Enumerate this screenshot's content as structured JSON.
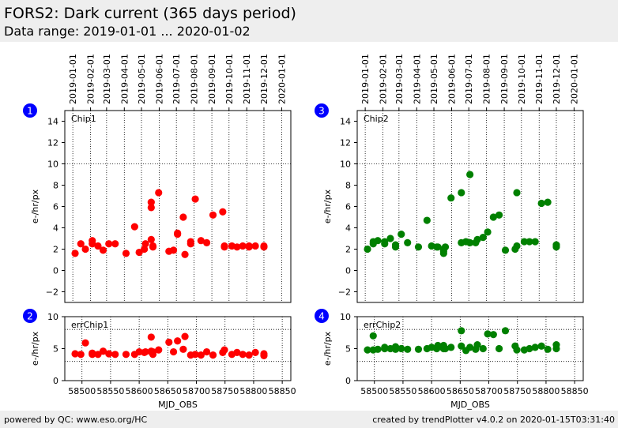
{
  "header": {
    "title": "FORS2: Dark current (365 days period)",
    "subtitle": "Data range: 2019-01-01 ... 2020-01-02"
  },
  "footer": {
    "left": "powered by QC: www.eso.org/HC",
    "right": "created by trendPlotter v4.0.2 on 2020-01-15T03:31:40"
  },
  "colors": {
    "chip1": "#ff0000",
    "chip2": "#008000",
    "badge": "#0000ff"
  },
  "chart_data": [
    {
      "type": "scatter",
      "panel_id": "1",
      "label": "Chip1",
      "xlabel": "",
      "ylabel": "e-/hr/px",
      "xlim": [
        58470,
        58865
      ],
      "ylim": [
        -3,
        15
      ],
      "yticks": [
        -2,
        0,
        2,
        4,
        6,
        8,
        10,
        12,
        14
      ],
      "ref_lines": [
        10
      ],
      "top_ticks": [
        "2019-01-01",
        "2019-02-01",
        "2019-03-01",
        "2019-04-01",
        "2019-05-01",
        "2019-06-01",
        "2019-07-01",
        "2019-08-01",
        "2019-09-01",
        "2019-10-01",
        "2019-11-01",
        "2019-12-01",
        "2020-01-01"
      ],
      "top_tick_mjd": [
        58484,
        58515,
        58543,
        58574,
        58604,
        58635,
        58665,
        58696,
        58727,
        58757,
        58788,
        58818,
        58849
      ],
      "color": "#ff0000",
      "x": [
        58488,
        58498,
        58506,
        58518,
        58518,
        58528,
        58537,
        58547,
        58558,
        58577,
        58592,
        58600,
        58609,
        58611,
        58621,
        58621,
        58621,
        58624,
        58624,
        58634,
        58652,
        58660,
        58667,
        58667,
        58677,
        58680,
        58690,
        58690,
        58698,
        58708,
        58718,
        58729,
        58746,
        58749,
        58749,
        58762,
        58771,
        58781,
        58792,
        58792,
        58803,
        58818,
        58818
      ],
      "y": [
        1.6,
        2.5,
        2.0,
        2.5,
        2.8,
        2.3,
        1.9,
        2.5,
        2.5,
        1.6,
        4.1,
        1.7,
        2.0,
        2.5,
        2.9,
        6.4,
        5.9,
        2.3,
        2.2,
        7.3,
        1.8,
        1.9,
        3.5,
        3.4,
        5.0,
        1.5,
        2.5,
        2.7,
        6.7,
        2.8,
        2.6,
        5.2,
        5.5,
        2.2,
        2.3,
        2.3,
        2.2,
        2.3,
        2.3,
        2.2,
        2.3,
        2.3,
        2.2
      ]
    },
    {
      "type": "scatter",
      "panel_id": "2",
      "label": "errChip1",
      "xlabel": "MJD_OBS",
      "ylabel": "e-/hr/px",
      "xlim": [
        58470,
        58865
      ],
      "ylim": [
        0,
        10
      ],
      "yticks": [
        0,
        5,
        10
      ],
      "ref_lines": [
        8,
        3
      ],
      "xticks": [
        58500,
        58550,
        58600,
        58650,
        58700,
        58750,
        58800,
        58850
      ],
      "color": "#ff0000",
      "x": [
        58488,
        58498,
        58506,
        58518,
        58518,
        58528,
        58537,
        58547,
        58558,
        58577,
        58592,
        58600,
        58609,
        58611,
        58621,
        58621,
        58621,
        58624,
        58624,
        58634,
        58652,
        58660,
        58667,
        58677,
        58680,
        58690,
        58698,
        58708,
        58718,
        58729,
        58746,
        58749,
        58762,
        58771,
        58781,
        58792,
        58803,
        58818,
        58818
      ],
      "y": [
        4.2,
        4.1,
        5.9,
        4.1,
        4.3,
        4.1,
        4.6,
        4.2,
        4.1,
        4.1,
        4.1,
        4.5,
        4.4,
        4.5,
        4.6,
        4.5,
        6.8,
        4.1,
        4.5,
        4.8,
        6.0,
        4.5,
        6.2,
        4.9,
        6.9,
        4.0,
        4.1,
        4.0,
        4.5,
        4.0,
        4.4,
        4.8,
        4.1,
        4.4,
        4.1,
        4.0,
        4.4,
        4.2,
        3.9
      ]
    },
    {
      "type": "scatter",
      "panel_id": "3",
      "label": "Chip2",
      "xlabel": "",
      "ylabel": "e-/hr/px",
      "xlim": [
        58470,
        58865
      ],
      "ylim": [
        -3,
        15
      ],
      "yticks": [
        -2,
        0,
        2,
        4,
        6,
        8,
        10,
        12,
        14
      ],
      "ref_lines": [
        10
      ],
      "top_ticks": [
        "2019-01-01",
        "2019-02-01",
        "2019-03-01",
        "2019-04-01",
        "2019-05-01",
        "2019-06-01",
        "2019-07-01",
        "2019-08-01",
        "2019-09-01",
        "2019-10-01",
        "2019-11-01",
        "2019-12-01",
        "2020-01-01"
      ],
      "top_tick_mjd": [
        58484,
        58515,
        58543,
        58574,
        58604,
        58635,
        58665,
        58696,
        58727,
        58757,
        58788,
        58818,
        58849
      ],
      "color": "#008000",
      "x": [
        58488,
        58498,
        58498,
        58506,
        58518,
        58518,
        58528,
        58537,
        58537,
        58547,
        58558,
        58577,
        58592,
        58600,
        58609,
        58611,
        58621,
        58621,
        58621,
        58624,
        58634,
        58652,
        58652,
        58660,
        58667,
        58667,
        58677,
        58680,
        58690,
        58698,
        58708,
        58718,
        58729,
        58746,
        58749,
        58749,
        58762,
        58771,
        58781,
        58792,
        58803,
        58818,
        58818
      ],
      "y": [
        2.0,
        2.5,
        2.7,
        2.8,
        2.5,
        2.7,
        3.0,
        2.2,
        2.4,
        3.4,
        2.6,
        2.2,
        4.7,
        2.3,
        2.2,
        2.2,
        1.8,
        1.6,
        2.0,
        2.2,
        6.8,
        7.3,
        2.6,
        2.7,
        9.0,
        2.6,
        2.6,
        2.9,
        3.1,
        3.6,
        5.0,
        5.2,
        1.9,
        2.0,
        2.3,
        7.3,
        2.7,
        2.7,
        2.7,
        6.3,
        6.4,
        2.2,
        2.4
      ]
    },
    {
      "type": "scatter",
      "panel_id": "4",
      "label": "errChip2",
      "xlabel": "MJD_OBS",
      "ylabel": "e-/hr/px",
      "xlim": [
        58470,
        58865
      ],
      "ylim": [
        0,
        10
      ],
      "yticks": [
        0,
        5,
        10
      ],
      "ref_lines": [
        8,
        3
      ],
      "xticks": [
        58500,
        58550,
        58600,
        58650,
        58700,
        58750,
        58800,
        58850
      ],
      "color": "#008000",
      "x": [
        58488,
        58498,
        58498,
        58506,
        58518,
        58518,
        58528,
        58537,
        58537,
        58547,
        58558,
        58577,
        58592,
        58600,
        58609,
        58611,
        58621,
        58621,
        58621,
        58624,
        58634,
        58652,
        58652,
        58660,
        58667,
        58677,
        58680,
        58690,
        58698,
        58708,
        58718,
        58729,
        58746,
        58749,
        58762,
        58771,
        58781,
        58792,
        58803,
        58818,
        58818
      ],
      "y": [
        4.8,
        4.8,
        7.0,
        4.9,
        5.0,
        5.2,
        5.0,
        5.3,
        4.9,
        5.0,
        4.9,
        4.9,
        5.0,
        5.2,
        5.0,
        5.5,
        5.0,
        5.4,
        5.5,
        5.0,
        5.2,
        5.4,
        7.8,
        4.7,
        5.2,
        4.9,
        5.6,
        5.0,
        7.3,
        7.2,
        5.0,
        7.8,
        5.4,
        4.8,
        4.8,
        5.0,
        5.2,
        5.4,
        4.9,
        5.0,
        5.6
      ]
    }
  ]
}
